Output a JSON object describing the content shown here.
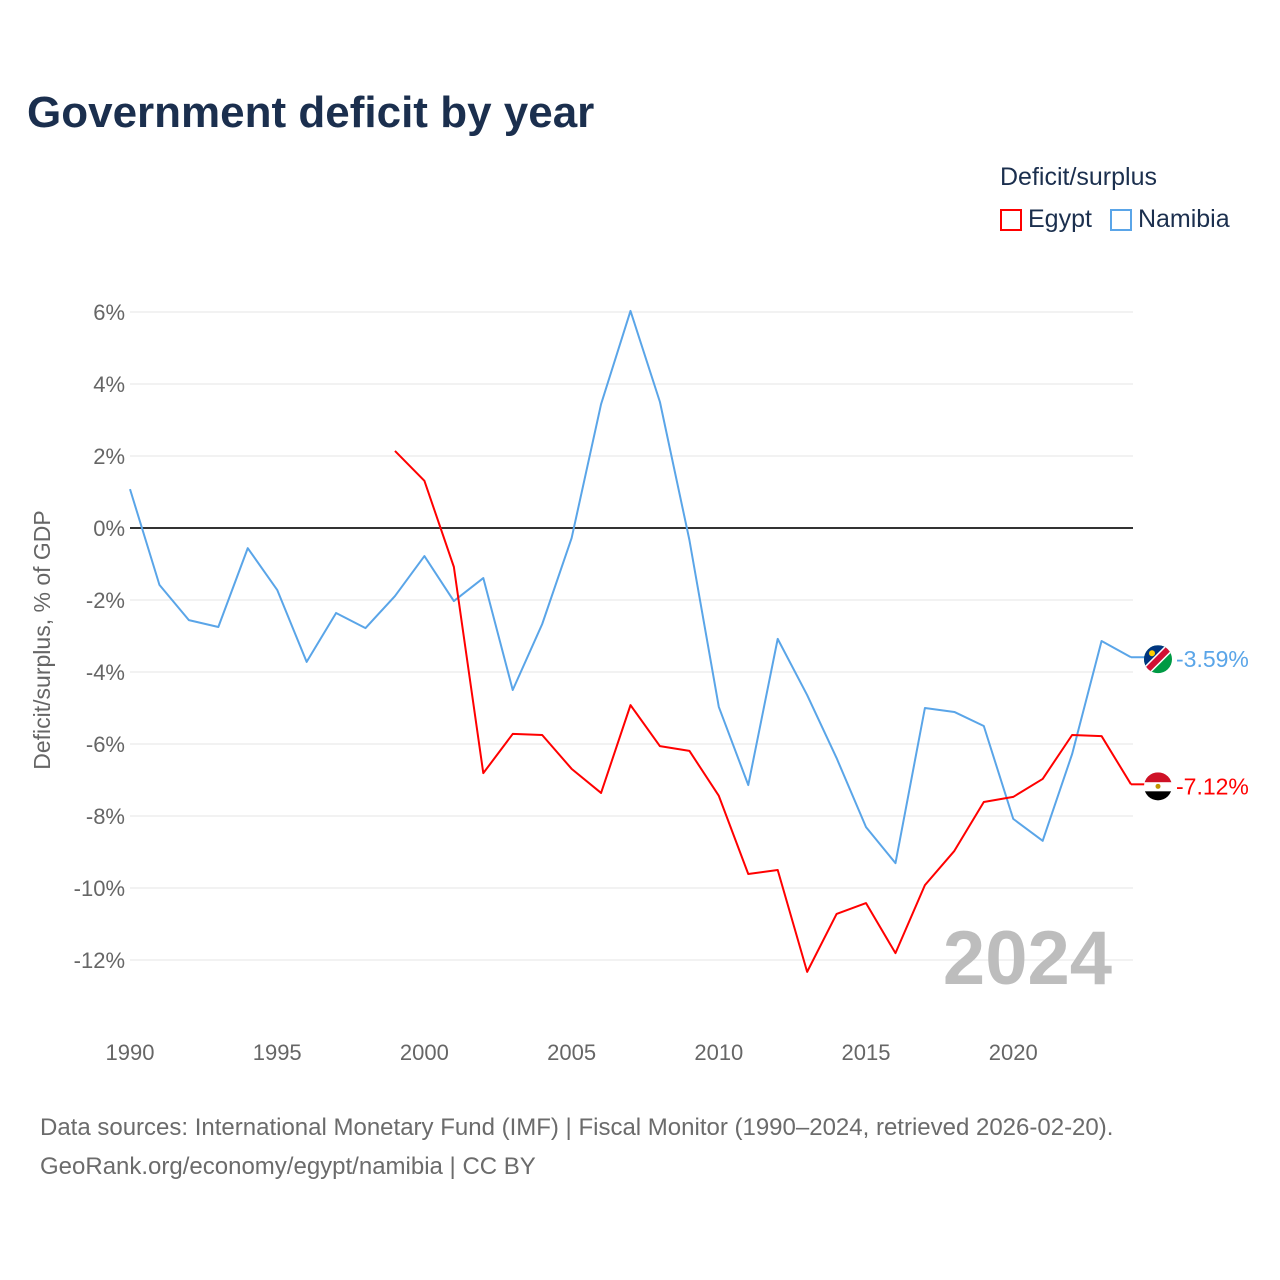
{
  "title": "Government deficit by year",
  "legend": {
    "title": "Deficit/surplus",
    "items": [
      {
        "name": "Egypt",
        "color": "#ff0000"
      },
      {
        "name": "Namibia",
        "color": "#5aa5e8"
      }
    ]
  },
  "source": {
    "line1": "Data sources: International Monetary Fund (IMF) | Fiscal Monitor (1990–2024, retrieved 2026-02-20).",
    "line2": "GeoRank.org/economy/egypt/namibia | CC BY"
  },
  "chart_data": {
    "type": "line",
    "title": "Government deficit by year",
    "xlabel": "",
    "ylabel": "Deficit/surplus, % of GDP",
    "xlim": [
      1990,
      2024
    ],
    "ylim": [
      -14,
      6.5
    ],
    "x_ticks": [
      1990,
      1995,
      2000,
      2005,
      2010,
      2015,
      2020
    ],
    "y_ticks": [
      6,
      4,
      2,
      0,
      -2,
      -4,
      -6,
      -8,
      -10,
      -12
    ],
    "y_tick_labels": [
      "6%",
      "4%",
      "2%",
      "0%",
      "-2%",
      "-4%",
      "-6%",
      "-8%",
      "-10%",
      "-12%"
    ],
    "watermark": "2024",
    "series": [
      {
        "name": "Namibia",
        "color": "#5aa5e8",
        "end_label": "-3.59%",
        "x": [
          1990,
          1991,
          1992,
          1993,
          1994,
          1995,
          1996,
          1997,
          1998,
          1999,
          2000,
          2001,
          2002,
          2003,
          2004,
          2005,
          2006,
          2007,
          2008,
          2009,
          2010,
          2011,
          2012,
          2013,
          2014,
          2015,
          2016,
          2017,
          2018,
          2019,
          2020,
          2021,
          2022,
          2023,
          2024
        ],
        "values": [
          1.08,
          -1.58,
          -2.56,
          -2.75,
          -0.56,
          -1.72,
          -3.72,
          -2.36,
          -2.78,
          -1.89,
          -0.78,
          -2.03,
          -1.39,
          -4.5,
          -2.67,
          -0.28,
          3.44,
          6.03,
          3.5,
          -0.33,
          -4.97,
          -7.14,
          -3.08,
          -4.64,
          -6.39,
          -8.31,
          -9.31,
          -5.0,
          -5.11,
          -5.5,
          -8.08,
          -8.69,
          -6.28,
          -3.14,
          -3.59
        ]
      },
      {
        "name": "Egypt",
        "color": "#ff0000",
        "end_label": "-7.12%",
        "x": [
          1999,
          2000,
          2001,
          2002,
          2003,
          2004,
          2005,
          2006,
          2007,
          2008,
          2009,
          2010,
          2011,
          2012,
          2013,
          2014,
          2015,
          2016,
          2017,
          2018,
          2019,
          2020,
          2021,
          2022,
          2023,
          2024
        ],
        "values": [
          2.14,
          1.31,
          -1.08,
          -6.81,
          -5.72,
          -5.75,
          -6.69,
          -7.36,
          -4.92,
          -6.06,
          -6.19,
          -7.44,
          -9.61,
          -9.5,
          -12.33,
          -10.72,
          -10.42,
          -11.81,
          -9.92,
          -8.97,
          -7.61,
          -7.47,
          -6.97,
          -5.75,
          -5.78,
          -7.12
        ]
      }
    ]
  }
}
